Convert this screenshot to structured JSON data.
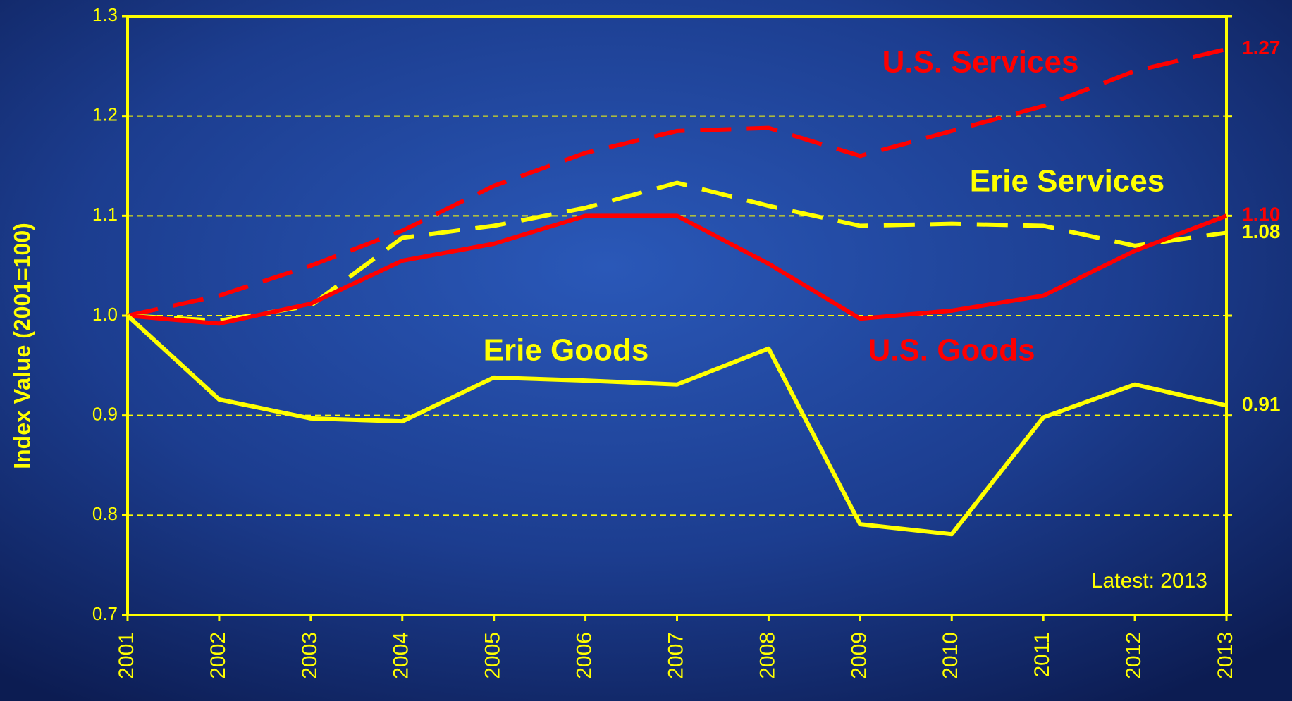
{
  "chart_data": {
    "type": "line",
    "y_axis_label": "Index Value (2001=100)",
    "annotation": "Latest: 2013",
    "categories": [
      "2001",
      "2002",
      "2003",
      "2004",
      "2005",
      "2006",
      "2007",
      "2008",
      "2009",
      "2010",
      "2011",
      "2012",
      "2013"
    ],
    "ylim": [
      0.7,
      1.3
    ],
    "yticks": [
      0.7,
      0.8,
      0.9,
      {
        "value": 1,
        "label": "1.0"
      },
      1.1,
      1.2,
      1.3
    ],
    "grid": true,
    "series": [
      {
        "name": "U.S. Services",
        "color": "#ff0000",
        "dashed": true,
        "values": [
          1.0,
          1.02,
          1.05,
          1.085,
          1.13,
          1.163,
          1.185,
          1.188,
          1.16,
          1.185,
          1.21,
          1.245,
          1.267
        ],
        "value_labels": [
          null,
          null,
          null,
          null,
          null,
          null,
          null,
          null,
          null,
          null,
          null,
          null,
          "1.27"
        ]
      },
      {
        "name": "Erie Services",
        "color": "#ffff00",
        "dashed": true,
        "values": [
          1.0,
          0.995,
          1.01,
          1.078,
          1.09,
          1.108,
          1.133,
          1.11,
          1.09,
          1.092,
          1.09,
          1.07,
          1.083
        ],
        "value_labels": [
          null,
          null,
          null,
          null,
          null,
          null,
          null,
          null,
          null,
          null,
          null,
          null,
          "1.08"
        ]
      },
      {
        "name": "U.S. Goods",
        "color": "#ff0000",
        "dashed": false,
        "values": [
          1.0,
          0.992,
          1.012,
          1.055,
          1.072,
          1.1,
          1.1,
          1.052,
          0.997,
          1.005,
          1.02,
          1.065,
          1.1
        ],
        "value_labels": [
          null,
          null,
          null,
          null,
          null,
          null,
          null,
          null,
          null,
          null,
          null,
          null,
          "1.10"
        ]
      },
      {
        "name": "Erie Goods",
        "color": "#ffff00",
        "dashed": false,
        "values": [
          1.0,
          0.916,
          0.897,
          0.894,
          0.938,
          0.935,
          0.931,
          0.967,
          0.791,
          0.781,
          0.898,
          0.931,
          0.91
        ],
        "value_labels": [
          null,
          null,
          null,
          null,
          null,
          null,
          null,
          null,
          null,
          null,
          null,
          null,
          "0.91"
        ]
      }
    ]
  }
}
